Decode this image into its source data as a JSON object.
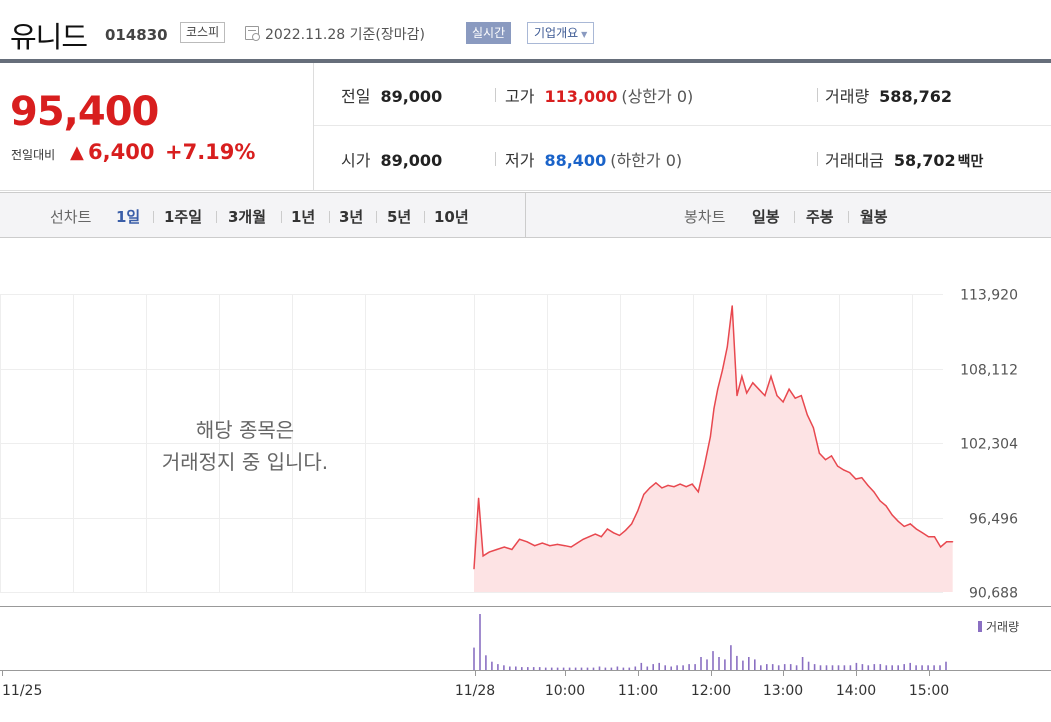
{
  "header": {
    "stock_name": "유니드",
    "stock_code": "014830",
    "market": "코스피",
    "date_text": "2022.11.28  기준(장마감)",
    "realtime_label": "실시간",
    "overview_label": "기업개요"
  },
  "price": {
    "current": "95,400",
    "change_label": "전일대비",
    "change_arrow": "▲",
    "change_value": "6,400",
    "change_pct": "+7.19%"
  },
  "stats": {
    "prev_close_label": "전일",
    "prev_close": "89,000",
    "high_label": "고가",
    "high": "113,000",
    "high_note": "(상한가 0)",
    "volume_label": "거래량",
    "volume": "588,762",
    "open_label": "시가",
    "open": "89,000",
    "low_label": "저가",
    "low": "88,400",
    "low_note": "(하한가 0)",
    "value_label": "거래대금",
    "value": "58,702",
    "value_unit": "백만"
  },
  "period_bar": {
    "line_label": "선차트",
    "line_periods": [
      "1일",
      "1주일",
      "3개월",
      "1년",
      "3년",
      "5년",
      "10년"
    ],
    "active_index": 0,
    "candle_label": "봉차트",
    "candle_periods": [
      "일봉",
      "주봉",
      "월봉"
    ]
  },
  "chart_notice": [
    "해당 종목은",
    "거래정지 중 입니다."
  ],
  "volume_legend": "거래량",
  "colors": {
    "up": "#d81e1e",
    "down": "#1a63c9",
    "line": "#e8484f",
    "area": "#fde3e4",
    "volume": "#8a6fc2"
  },
  "chart_data": {
    "type": "line",
    "title": "",
    "xlabel": "",
    "ylabel": "",
    "ylim": [
      90688,
      113920
    ],
    "yticks": [
      113920,
      108112,
      102304,
      96496,
      90688
    ],
    "ytick_labels": [
      "113,920",
      "108,112",
      "102,304",
      "96,496",
      "90,688"
    ],
    "xticks": [
      "11/25",
      "11/28",
      "10:00",
      "11:00",
      "12:00",
      "13:00",
      "14:00",
      "15:00"
    ],
    "grid": true,
    "series": [
      {
        "x": [
          "09:00",
          "09:03",
          "09:06",
          "09:10",
          "09:15",
          "09:20",
          "09:25",
          "09:30",
          "09:35",
          "09:40",
          "09:45",
          "09:50",
          "09:55",
          "10:00",
          "10:05",
          "10:10",
          "10:15",
          "10:20",
          "10:25",
          "10:30",
          "10:35",
          "10:40",
          "10:45",
          "10:50",
          "10:55",
          "11:00",
          "11:05",
          "11:10",
          "11:15",
          "11:20",
          "11:25",
          "11:30",
          "11:35",
          "11:40",
          "11:45",
          "11:50",
          "11:55",
          "12:00",
          "12:03",
          "12:06",
          "12:10",
          "12:14",
          "12:18",
          "12:22",
          "12:26",
          "12:30",
          "12:35",
          "12:40",
          "12:45",
          "12:50",
          "12:55",
          "13:00",
          "13:05",
          "13:10",
          "13:15",
          "13:20",
          "13:25",
          "13:30",
          "13:35",
          "13:40",
          "13:45",
          "13:50",
          "13:55",
          "14:00",
          "14:05",
          "14:10",
          "14:15",
          "14:20",
          "14:25",
          "14:30",
          "14:35",
          "14:40",
          "14:45",
          "14:50",
          "14:55",
          "15:00",
          "15:05",
          "15:10",
          "15:15",
          "15:20"
        ],
        "values": [
          92500,
          98000,
          93500,
          93800,
          94000,
          94200,
          94000,
          94800,
          94600,
          94300,
          94500,
          94300,
          94400,
          94300,
          94200,
          94500,
          94800,
          95000,
          95200,
          95000,
          95600,
          95300,
          95100,
          95500,
          96000,
          97000,
          98300,
          98800,
          99200,
          98800,
          99000,
          98900,
          99100,
          98900,
          99100,
          98500,
          100500,
          102800,
          105000,
          106500,
          108000,
          109800,
          113000,
          106000,
          107500,
          106200,
          107000,
          106500,
          106000,
          107500,
          106000,
          105500,
          106500,
          105800,
          106000,
          104500,
          103500,
          101500,
          101000,
          101300,
          100500,
          100200,
          100000,
          99500,
          99600,
          99000,
          98500,
          97800,
          97400,
          96700,
          96200,
          95800,
          96000,
          95600,
          95300,
          95000,
          95000,
          94200,
          94600,
          94600
        ]
      }
    ],
    "volume": [
      38,
      95,
      25,
      14,
      10,
      8,
      6,
      6,
      5,
      5,
      5,
      5,
      4,
      4,
      4,
      4,
      4,
      4,
      4,
      4,
      4,
      6,
      4,
      4,
      6,
      4,
      4,
      6,
      12,
      6,
      10,
      12,
      8,
      6,
      8,
      8,
      10,
      10,
      22,
      18,
      32,
      22,
      18,
      42,
      24,
      16,
      22,
      18,
      8,
      10,
      10,
      8,
      10,
      10,
      8,
      22,
      14,
      10,
      8,
      8,
      8,
      8,
      8,
      8,
      12,
      10,
      8,
      10,
      10,
      8,
      8,
      8,
      10,
      12,
      8,
      8,
      8,
      8,
      8,
      14
    ]
  }
}
